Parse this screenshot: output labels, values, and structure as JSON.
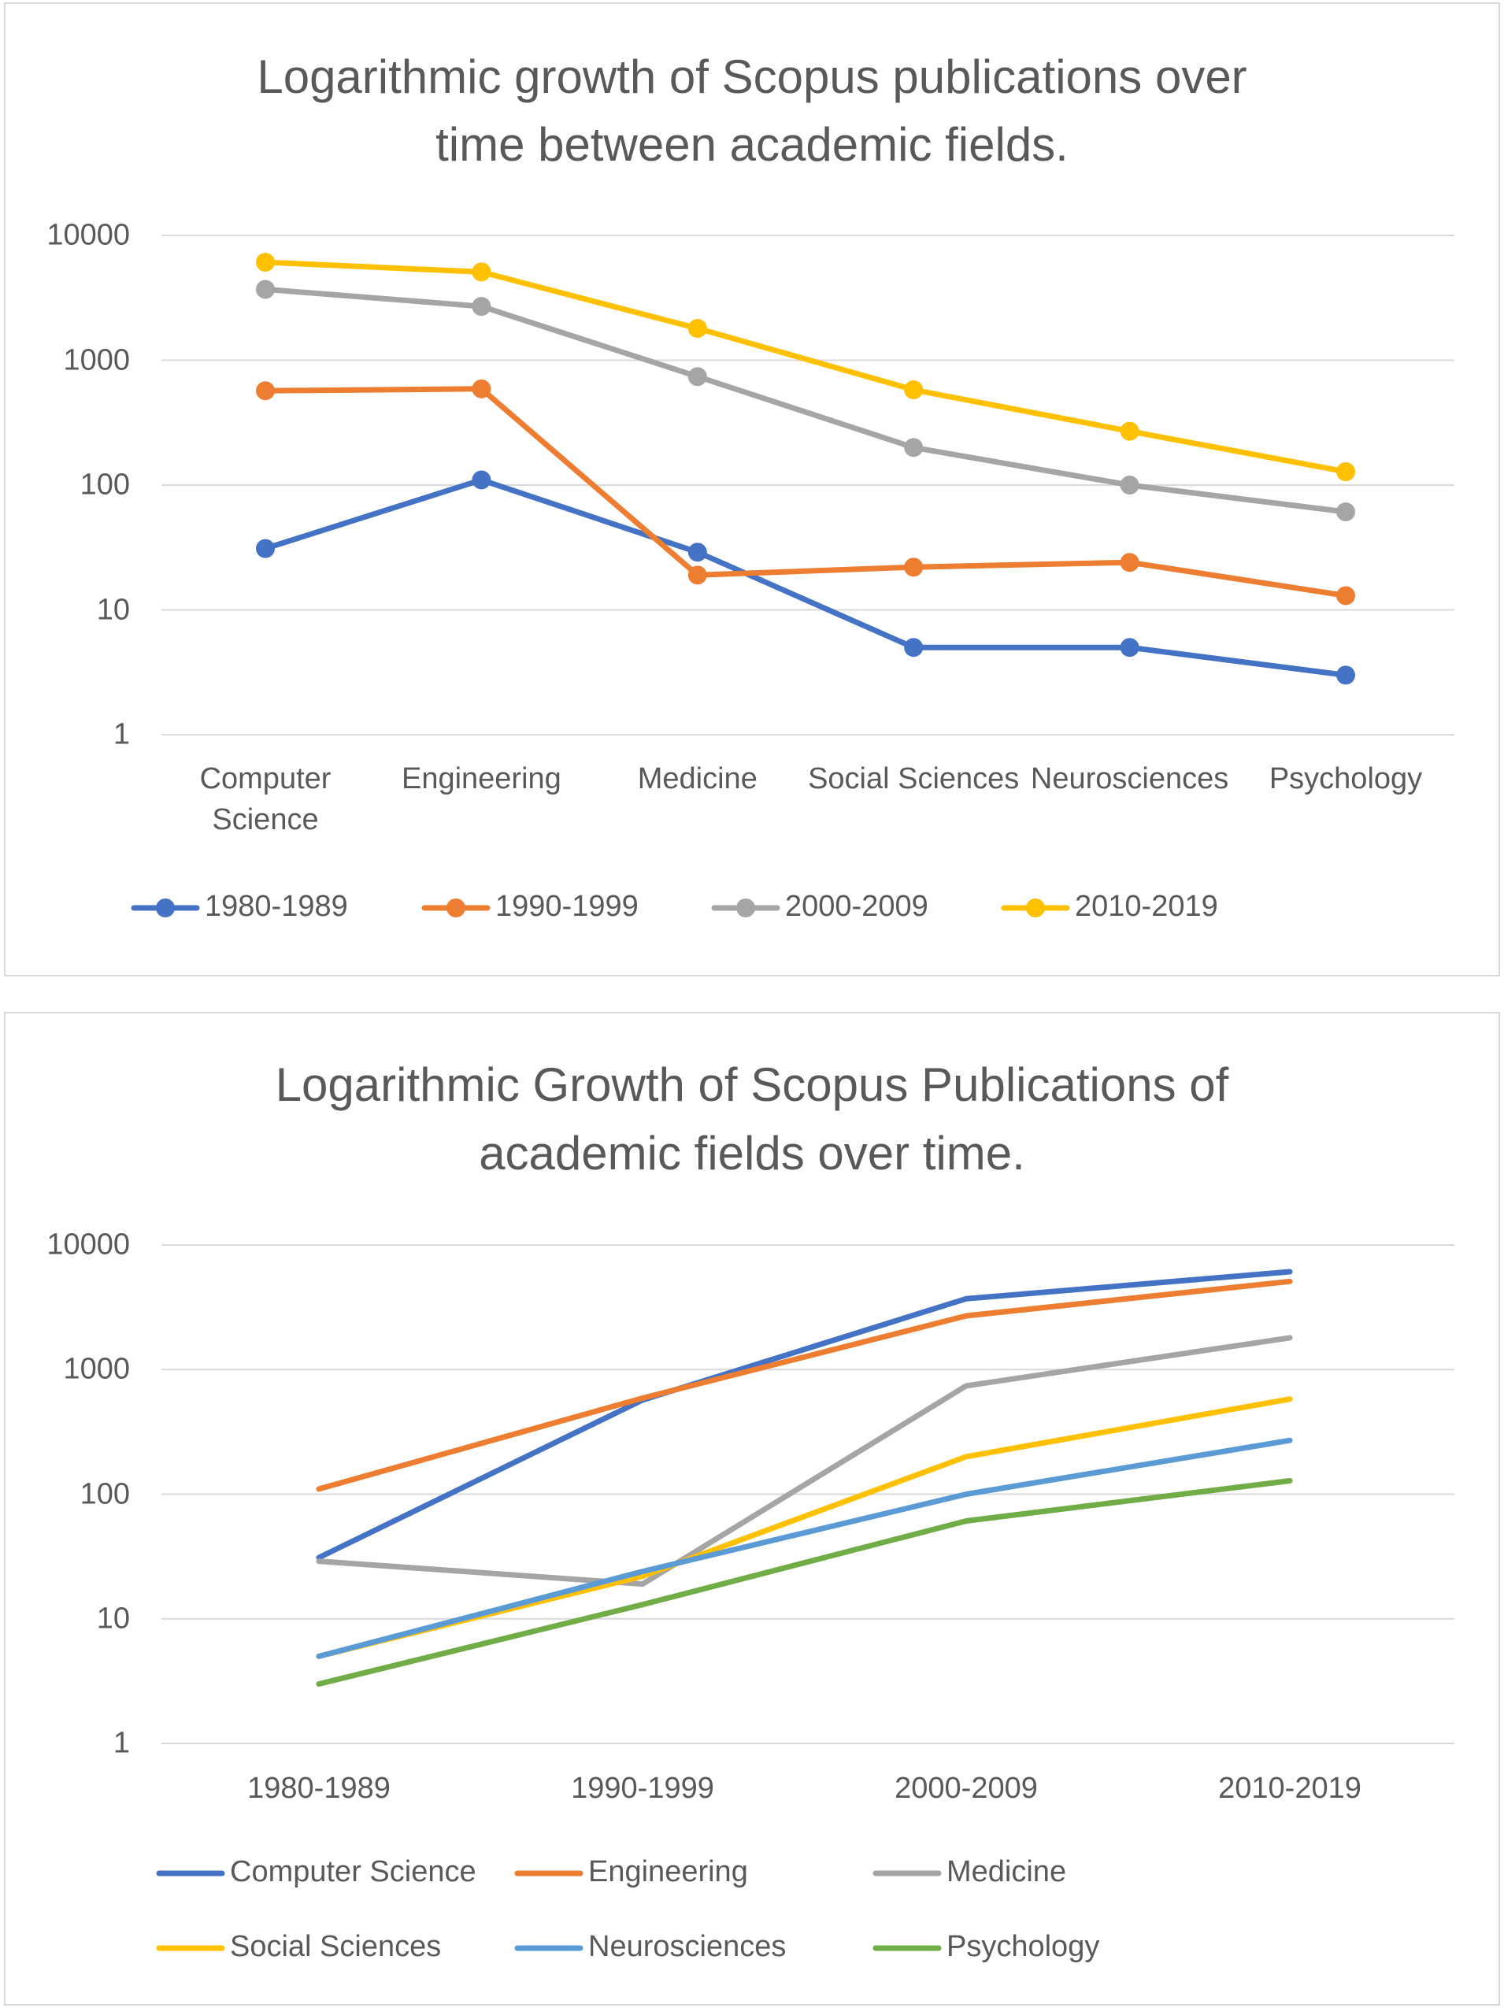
{
  "chart_data": [
    {
      "type": "line",
      "title": "Logarithmic growth of Scopus publications over time between academic fields.",
      "title_lines": [
        "Logarithmic growth of Scopus publications over",
        "time between academic fields."
      ],
      "yscale": "log",
      "ylim": [
        1,
        10000
      ],
      "yticks": [
        "10000",
        "1000",
        "100",
        "10",
        "1"
      ],
      "ytick_values": [
        10000,
        1000,
        100,
        10,
        1
      ],
      "categories": [
        "Computer Science",
        "Engineering",
        "Medicine",
        "Social Sciences",
        "Neurosciences",
        "Psychology"
      ],
      "category_lines": [
        [
          "Computer",
          "Science"
        ],
        [
          "Engineering"
        ],
        [
          "Medicine"
        ],
        [
          "Social Sciences"
        ],
        [
          "Neurosciences"
        ],
        [
          "Psychology"
        ]
      ],
      "markers": true,
      "legend_position": "bottom",
      "series": [
        {
          "name": "1980-1989",
          "color": "#4472c4",
          "values": [
            31,
            110,
            29,
            5,
            5,
            3
          ]
        },
        {
          "name": "1990-1999",
          "color": "#ed7d31",
          "values": [
            570,
            590,
            19,
            22,
            24,
            13
          ]
        },
        {
          "name": "2000-2009",
          "color": "#a5a5a5",
          "values": [
            3700,
            2700,
            740,
            200,
            100,
            61
          ]
        },
        {
          "name": "2010-2019",
          "color": "#ffc000",
          "values": [
            6100,
            5100,
            1800,
            580,
            270,
            128
          ]
        }
      ]
    },
    {
      "type": "line",
      "title": "Logarithmic Growth of Scopus Publications of academic fields over time.",
      "title_lines": [
        "Logarithmic Growth of Scopus Publications of",
        "academic fields over time."
      ],
      "yscale": "log",
      "ylim": [
        1,
        10000
      ],
      "yticks": [
        "10000",
        "1000",
        "100",
        "10",
        "1"
      ],
      "ytick_values": [
        10000,
        1000,
        100,
        10,
        1
      ],
      "categories": [
        "1980-1989",
        "1990-1999",
        "2000-2009",
        "2010-2019"
      ],
      "category_lines": [
        [
          "1980-1989"
        ],
        [
          "1990-1999"
        ],
        [
          "2000-2009"
        ],
        [
          "2010-2019"
        ]
      ],
      "markers": false,
      "legend_position": "bottom",
      "series": [
        {
          "name": "Computer Science",
          "color": "#4472c4",
          "values": [
            31,
            570,
            3700,
            6100
          ]
        },
        {
          "name": "Engineering",
          "color": "#ed7d31",
          "values": [
            110,
            590,
            2700,
            5100
          ]
        },
        {
          "name": "Medicine",
          "color": "#a5a5a5",
          "values": [
            29,
            19,
            740,
            1800
          ]
        },
        {
          "name": "Social Sciences",
          "color": "#ffc000",
          "values": [
            5,
            22,
            200,
            580
          ]
        },
        {
          "name": "Neurosciences",
          "color": "#5b9bd5",
          "values": [
            5,
            24,
            100,
            270
          ]
        },
        {
          "name": "Psychology",
          "color": "#70ad47",
          "values": [
            3,
            13,
            61,
            128
          ]
        }
      ]
    }
  ]
}
